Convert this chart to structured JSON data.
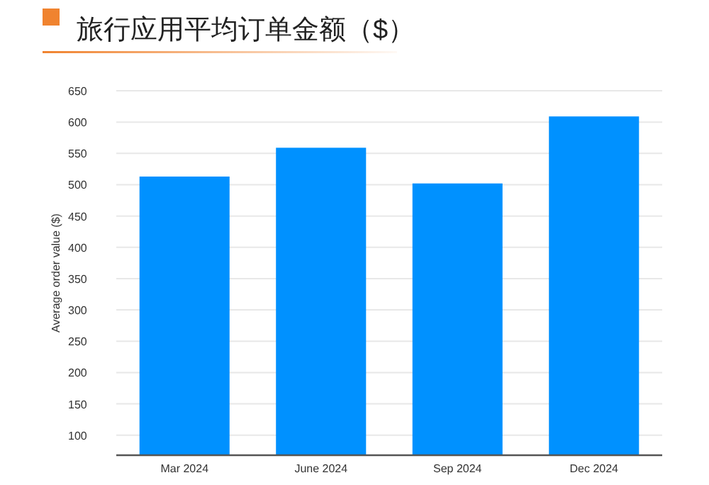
{
  "chart_data": {
    "type": "bar",
    "title": "旅行应用平均订单金额（$）",
    "ylabel": "Average order value ($)",
    "categories": [
      "Mar 2024",
      "June 2024",
      "Sep 2024",
      "Dec 2024"
    ],
    "values": [
      513,
      559,
      502,
      609
    ],
    "color": "#0091ff",
    "ylim": [
      68,
      650
    ],
    "yticks": [
      100,
      150,
      200,
      250,
      300,
      350,
      400,
      450,
      500,
      550,
      600,
      650
    ],
    "grid": "y"
  }
}
